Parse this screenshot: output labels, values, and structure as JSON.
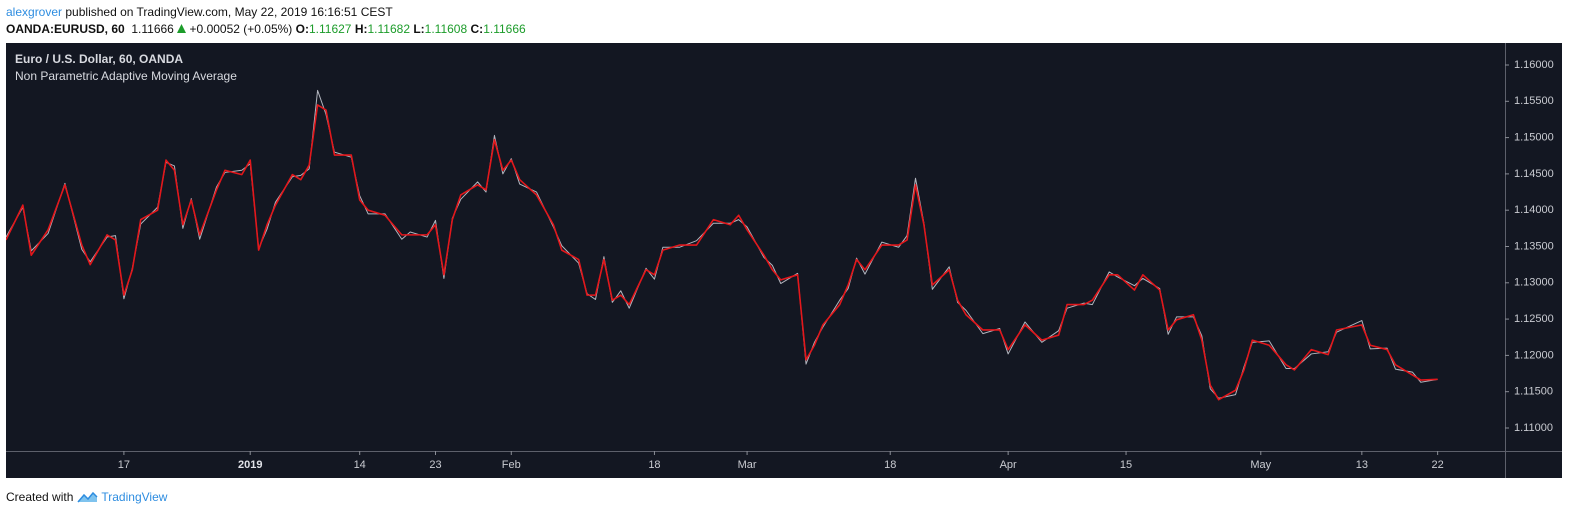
{
  "header": {
    "author": "alexgrover",
    "published": "published on TradingView.com, May 22, 2019 16:16:51 CEST"
  },
  "quote": {
    "symbol": "OANDA:EURUSD, 60",
    "last": "1.11666",
    "change": "+0.00052 (+0.05%)",
    "open_label": "O:",
    "open": "1.11627",
    "high_label": "H:",
    "high": "1.11682",
    "low_label": "L:",
    "low": "1.11608",
    "close_label": "C:",
    "close": "1.11666"
  },
  "footer": {
    "text": "Created with",
    "brand": "TradingView"
  },
  "chart_data": {
    "type": "line",
    "x": [
      "2018-12-03",
      "2018-12-05",
      "2018-12-06",
      "2018-12-08",
      "2018-12-10",
      "2018-12-12",
      "2018-12-13",
      "2018-12-15",
      "2018-12-16",
      "2018-12-17",
      "2018-12-18",
      "2018-12-19",
      "2018-12-21",
      "2018-12-22",
      "2018-12-23",
      "2018-12-24",
      "2018-12-25",
      "2018-12-26",
      "2018-12-28",
      "2018-12-29",
      "2018-12-31",
      "2019-01-01",
      "2019-01-02",
      "2019-01-03",
      "2019-01-04",
      "2019-01-06",
      "2019-01-07",
      "2019-01-08",
      "2019-01-09",
      "2019-01-10",
      "2019-01-11",
      "2019-01-13",
      "2019-01-14",
      "2019-01-15",
      "2019-01-17",
      "2019-01-19",
      "2019-01-20",
      "2019-01-22",
      "2019-01-23",
      "2019-01-24",
      "2019-01-25",
      "2019-01-26",
      "2019-01-28",
      "2019-01-29",
      "2019-01-30",
      "2019-01-31",
      "2019-02-01",
      "2019-02-02",
      "2019-02-04",
      "2019-02-06",
      "2019-02-07",
      "2019-02-09",
      "2019-02-10",
      "2019-02-11",
      "2019-02-12",
      "2019-02-13",
      "2019-02-14",
      "2019-02-15",
      "2019-02-17",
      "2019-02-18",
      "2019-02-19",
      "2019-02-21",
      "2019-02-23",
      "2019-02-25",
      "2019-02-27",
      "2019-02-28",
      "2019-03-01",
      "2019-03-03",
      "2019-03-04",
      "2019-03-05",
      "2019-03-07",
      "2019-03-08",
      "2019-03-09",
      "2019-03-10",
      "2019-03-12",
      "2019-03-13",
      "2019-03-14",
      "2019-03-15",
      "2019-03-17",
      "2019-03-19",
      "2019-03-20",
      "2019-03-21",
      "2019-03-22",
      "2019-03-23",
      "2019-03-25",
      "2019-03-26",
      "2019-03-27",
      "2019-03-29",
      "2019-03-31",
      "2019-04-01",
      "2019-04-03",
      "2019-04-05",
      "2019-04-07",
      "2019-04-08",
      "2019-04-10",
      "2019-04-11",
      "2019-04-13",
      "2019-04-14",
      "2019-04-16",
      "2019-04-17",
      "2019-04-19",
      "2019-04-20",
      "2019-04-21",
      "2019-04-23",
      "2019-04-24",
      "2019-04-25",
      "2019-04-26",
      "2019-04-28",
      "2019-04-29",
      "2019-04-30",
      "2019-05-02",
      "2019-05-04",
      "2019-05-05",
      "2019-05-07",
      "2019-05-09",
      "2019-05-10",
      "2019-05-13",
      "2019-05-14",
      "2019-05-16",
      "2019-05-17",
      "2019-05-19",
      "2019-05-20",
      "2019-05-22"
    ],
    "series": [
      {
        "name": "Euro / U.S. Dollar, 60, OANDA",
        "color": "#b2b5be",
        "values": [
          1.1363,
          1.1404,
          1.1344,
          1.1368,
          1.1437,
          1.1346,
          1.1329,
          1.1363,
          1.1365,
          1.1278,
          1.132,
          1.1381,
          1.1404,
          1.1466,
          1.1461,
          1.1375,
          1.1416,
          1.136,
          1.1432,
          1.1452,
          1.1455,
          1.1464,
          1.1347,
          1.1374,
          1.1411,
          1.1446,
          1.1448,
          1.1457,
          1.1565,
          1.1532,
          1.148,
          1.1473,
          1.142,
          1.1395,
          1.1395,
          1.136,
          1.137,
          1.1363,
          1.1386,
          1.1306,
          1.1389,
          1.1415,
          1.1439,
          1.1425,
          1.1503,
          1.145,
          1.1471,
          1.1436,
          1.1425,
          1.1377,
          1.1351,
          1.1327,
          1.1285,
          1.1277,
          1.1336,
          1.1273,
          1.1289,
          1.1265,
          1.132,
          1.1305,
          1.1349,
          1.1349,
          1.1358,
          1.1382,
          1.1382,
          1.1387,
          1.1377,
          1.1335,
          1.1324,
          1.1299,
          1.1313,
          1.1188,
          1.1218,
          1.1239,
          1.1276,
          1.1292,
          1.1334,
          1.1312,
          1.1356,
          1.1349,
          1.1365,
          1.1444,
          1.1382,
          1.1291,
          1.1322,
          1.1273,
          1.1262,
          1.123,
          1.1237,
          1.1202,
          1.1246,
          1.1218,
          1.1234,
          1.1265,
          1.1272,
          1.127,
          1.1315,
          1.1308,
          1.1296,
          1.1306,
          1.1292,
          1.1229,
          1.1253,
          1.1253,
          1.1227,
          1.1154,
          1.1141,
          1.1146,
          1.1184,
          1.1218,
          1.122,
          1.1182,
          1.1182,
          1.1202,
          1.1205,
          1.1232,
          1.1248,
          1.1209,
          1.121,
          1.1181,
          1.1177,
          1.1163,
          1.1167
        ]
      },
      {
        "name": "Non Parametric Adaptive Moving Average",
        "color": "#e3171b",
        "values": [
          1.1359,
          1.1407,
          1.1338,
          1.1373,
          1.1435,
          1.1352,
          1.1325,
          1.1366,
          1.1359,
          1.1283,
          1.1318,
          1.1387,
          1.14,
          1.1469,
          1.1455,
          1.138,
          1.1414,
          1.1366,
          1.1428,
          1.1455,
          1.1449,
          1.1469,
          1.1345,
          1.138,
          1.1407,
          1.1449,
          1.1442,
          1.1462,
          1.1545,
          1.1538,
          1.1476,
          1.1476,
          1.1414,
          1.14,
          1.1393,
          1.1366,
          1.1366,
          1.1366,
          1.138,
          1.1311,
          1.1387,
          1.1421,
          1.1435,
          1.1428,
          1.1497,
          1.1455,
          1.1469,
          1.1442,
          1.1421,
          1.138,
          1.1345,
          1.1332,
          1.1283,
          1.1283,
          1.1332,
          1.1276,
          1.1283,
          1.127,
          1.1318,
          1.1311,
          1.1345,
          1.1352,
          1.1352,
          1.1387,
          1.138,
          1.1393,
          1.1373,
          1.1338,
          1.1318,
          1.1304,
          1.1311,
          1.1194,
          1.1214,
          1.1242,
          1.127,
          1.1297,
          1.1332,
          1.1318,
          1.1352,
          1.1352,
          1.1359,
          1.1435,
          1.138,
          1.1297,
          1.1318,
          1.1276,
          1.1256,
          1.1235,
          1.1235,
          1.1208,
          1.1242,
          1.1221,
          1.1228,
          1.127,
          1.127,
          1.1276,
          1.1311,
          1.1311,
          1.129,
          1.1311,
          1.129,
          1.1235,
          1.1249,
          1.1256,
          1.1221,
          1.1159,
          1.1139,
          1.1152,
          1.118,
          1.1221,
          1.1214,
          1.1187,
          1.118,
          1.1208,
          1.1201,
          1.1235,
          1.1242,
          1.1214,
          1.1208,
          1.1187,
          1.1173,
          1.1166,
          1.1167
        ]
      }
    ],
    "xlim": [
      "2018-12-03",
      "2019-05-30"
    ],
    "xticks": [
      {
        "value": "2018-12-17",
        "label": "17"
      },
      {
        "value": "2019-01-01",
        "label": "2019"
      },
      {
        "value": "2019-01-14",
        "label": "14"
      },
      {
        "value": "2019-01-23",
        "label": "23"
      },
      {
        "value": "2019-02-01",
        "label": "Feb"
      },
      {
        "value": "2019-02-18",
        "label": "18"
      },
      {
        "value": "2019-03-01",
        "label": "Mar"
      },
      {
        "value": "2019-03-18",
        "label": "18"
      },
      {
        "value": "2019-04-01",
        "label": "Apr"
      },
      {
        "value": "2019-04-15",
        "label": "15"
      },
      {
        "value": "2019-05-01",
        "label": "May"
      },
      {
        "value": "2019-05-13",
        "label": "13"
      },
      {
        "value": "2019-05-22",
        "label": "22"
      }
    ],
    "ylim": [
      1.10683,
      1.16303
    ],
    "yticks": [
      {
        "value": 1.11,
        "label": "1.11000"
      },
      {
        "value": 1.115,
        "label": "1.11500"
      },
      {
        "value": 1.12,
        "label": "1.12000"
      },
      {
        "value": 1.125,
        "label": "1.12500"
      },
      {
        "value": 1.13,
        "label": "1.13000"
      },
      {
        "value": 1.135,
        "label": "1.13500"
      },
      {
        "value": 1.14,
        "label": "1.14000"
      },
      {
        "value": 1.145,
        "label": "1.14500"
      },
      {
        "value": 1.15,
        "label": "1.15000"
      },
      {
        "value": 1.155,
        "label": "1.15500"
      },
      {
        "value": 1.16,
        "label": "1.16000"
      }
    ],
    "grid": false,
    "background": "#131722"
  }
}
